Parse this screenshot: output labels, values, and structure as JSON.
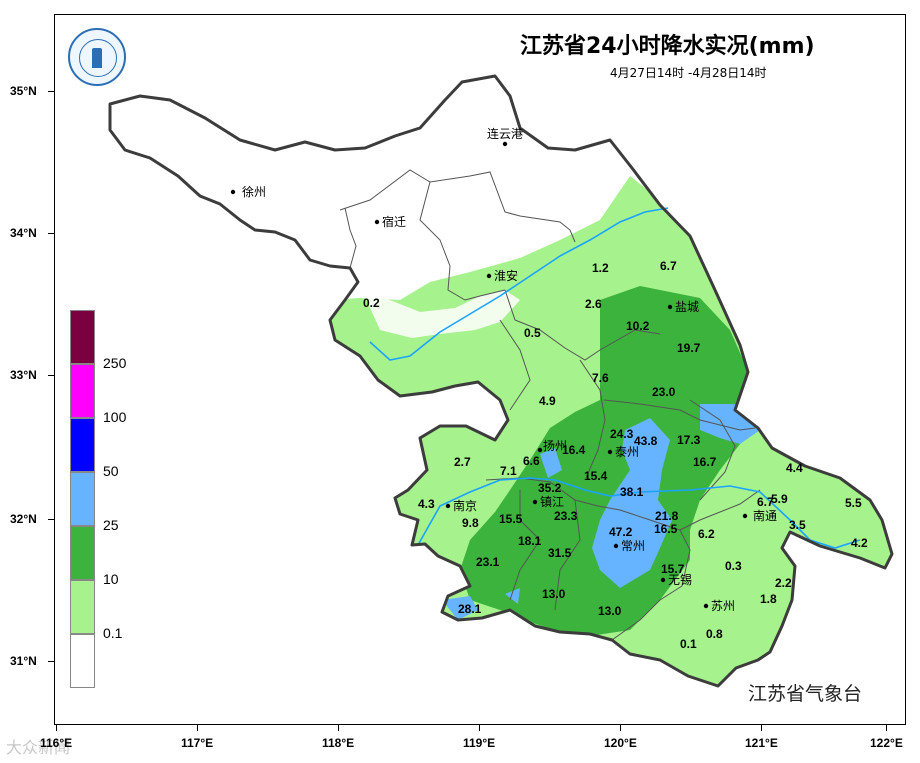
{
  "title": "江苏省24小时降水实况(mm)",
  "subtitle": "4月27日14时 -4月28日14时",
  "organization": "江苏省气象台",
  "watermark": "大众新闻",
  "latitude_labels": [
    "35°N",
    "34°N",
    "33°N",
    "32°N",
    "31°N"
  ],
  "longitude_labels": [
    "116°E",
    "117°E",
    "118°E",
    "119°E",
    "120°E",
    "121°E",
    "122°E"
  ],
  "legend": {
    "labels": [
      "250",
      "100",
      "50",
      "25",
      "10",
      "0.1"
    ],
    "colors": [
      "#7a0040",
      "#ff00ff",
      "#0000ff",
      "#66b3ff",
      "#3cb33c",
      "#a6f28c",
      "#ffffff"
    ]
  },
  "cities": [
    {
      "name": "连云港"
    },
    {
      "name": "徐州"
    },
    {
      "name": "宿迁"
    },
    {
      "name": "淮安"
    },
    {
      "name": "盐城"
    },
    {
      "name": "扬州"
    },
    {
      "name": "泰州"
    },
    {
      "name": "南京"
    },
    {
      "name": "镇江"
    },
    {
      "name": "常州"
    },
    {
      "name": "南通"
    },
    {
      "name": "无锡"
    },
    {
      "name": "苏州"
    }
  ],
  "rainfall_values": [
    "1.2",
    "6.7",
    "0.2",
    "2.6",
    "10.2",
    "0.5",
    "19.7",
    "7.6",
    "4.9",
    "23.0",
    "24.3",
    "43.8",
    "17.3",
    "16.4",
    "6.6",
    "2.7",
    "7.1",
    "16.7",
    "4.4",
    "15.4",
    "35.2",
    "38.1",
    "4.3",
    "6.7",
    "5.9",
    "5.5",
    "9.8",
    "15.5",
    "23.3",
    "21.8",
    "3.5",
    "47.2",
    "16.5",
    "18.1",
    "6.2",
    "4.2",
    "31.5",
    "23.1",
    "15.7",
    "0.3",
    "2.2",
    "13.0",
    "1.8",
    "28.1",
    "13.0",
    "0.8",
    "0.1"
  ]
}
